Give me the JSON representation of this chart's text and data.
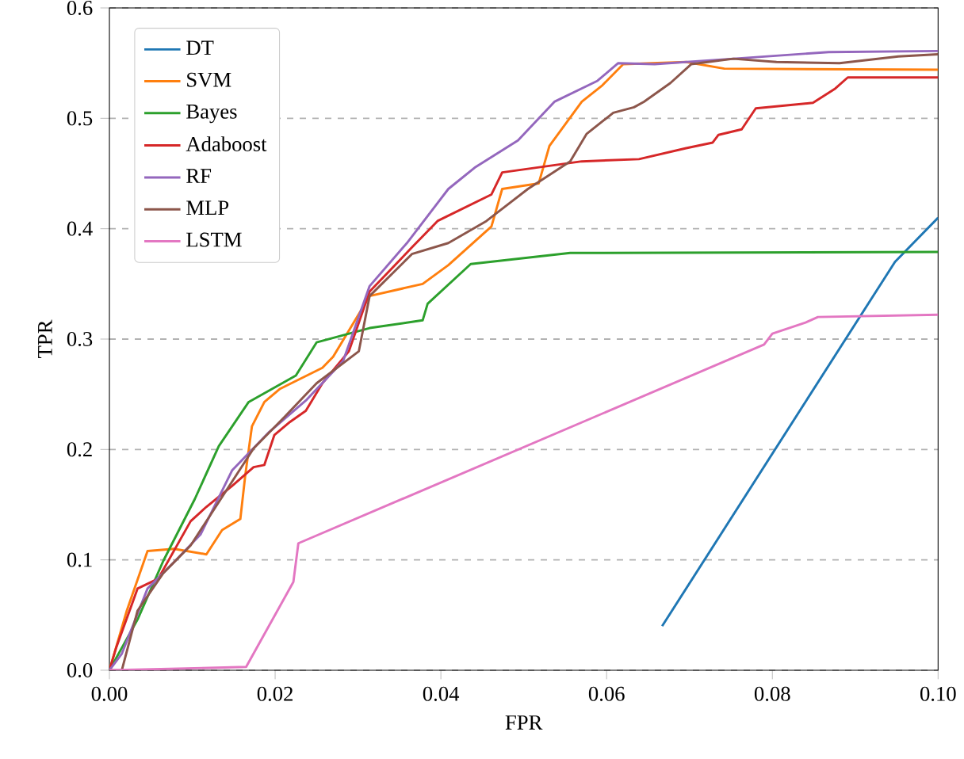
{
  "chart_data": {
    "type": "line",
    "xlabel": "FPR",
    "ylabel": "TPR",
    "xlim": [
      0,
      0.1
    ],
    "ylim": [
      0,
      0.6
    ],
    "xticks": [
      {
        "value": 0,
        "label": "0.00"
      },
      {
        "value": 0.02,
        "label": "0.02"
      },
      {
        "value": 0.04,
        "label": "0.04"
      },
      {
        "value": 0.06,
        "label": "0.06"
      },
      {
        "value": 0.08,
        "label": "0.08"
      },
      {
        "value": 0.1,
        "label": "0.10"
      }
    ],
    "yticks": [
      {
        "value": 0,
        "label": "0.0"
      },
      {
        "value": 0.1,
        "label": "0.1"
      },
      {
        "value": 0.2,
        "label": "0.2"
      },
      {
        "value": 0.3,
        "label": "0.3"
      },
      {
        "value": 0.4,
        "label": "0.4"
      },
      {
        "value": 0.5,
        "label": "0.5"
      },
      {
        "value": 0.6,
        "label": "0.6"
      }
    ],
    "grid": "y",
    "legend": "top left",
    "marker": "none",
    "line_style": "solid",
    "series": [
      {
        "name": "DT",
        "color": "#1f77b4",
        "x": [
          0.0667,
          0.0948,
          0.1
        ],
        "values": [
          0.04,
          0.37,
          0.41
        ]
      },
      {
        "name": "SVM",
        "color": "#ff7f0e",
        "x": [
          0,
          0.0021,
          0.0046,
          0.0078,
          0.0117,
          0.0136,
          0.0158,
          0.0164,
          0.0172,
          0.0187,
          0.0206,
          0.0257,
          0.027,
          0.0314,
          0.0378,
          0.0409,
          0.0461,
          0.0474,
          0.0518,
          0.0531,
          0.057,
          0.0595,
          0.062,
          0.0696,
          0.0742,
          0.1
        ],
        "values": [
          0,
          0.054,
          0.108,
          0.11,
          0.105,
          0.127,
          0.137,
          0.177,
          0.221,
          0.243,
          0.255,
          0.274,
          0.284,
          0.339,
          0.35,
          0.367,
          0.402,
          0.436,
          0.441,
          0.475,
          0.515,
          0.53,
          0.549,
          0.551,
          0.545,
          0.544
        ]
      },
      {
        "name": "Bayes",
        "color": "#2ca02c",
        "x": [
          0,
          0.0034,
          0.0065,
          0.0103,
          0.0132,
          0.0168,
          0.0225,
          0.025,
          0.0314,
          0.0378,
          0.0384,
          0.0436,
          0.0556,
          0.1
        ],
        "values": [
          0,
          0.046,
          0.099,
          0.155,
          0.203,
          0.243,
          0.267,
          0.297,
          0.31,
          0.317,
          0.332,
          0.368,
          0.378,
          0.379
        ]
      },
      {
        "name": "Adaboost",
        "color": "#d62728",
        "x": [
          0,
          0.0008,
          0.0034,
          0.0059,
          0.0098,
          0.0117,
          0.0148,
          0.0174,
          0.0187,
          0.0199,
          0.0218,
          0.0237,
          0.0257,
          0.0289,
          0.0314,
          0.0365,
          0.0396,
          0.0461,
          0.0474,
          0.057,
          0.0639,
          0.0696,
          0.0728,
          0.0735,
          0.0763,
          0.078,
          0.0849,
          0.0876,
          0.0891,
          0.1
        ],
        "values": [
          0,
          0.02,
          0.074,
          0.083,
          0.135,
          0.148,
          0.167,
          0.184,
          0.186,
          0.213,
          0.225,
          0.235,
          0.26,
          0.289,
          0.343,
          0.383,
          0.407,
          0.431,
          0.451,
          0.461,
          0.463,
          0.473,
          0.478,
          0.485,
          0.49,
          0.509,
          0.514,
          0.527,
          0.537,
          0.537
        ]
      },
      {
        "name": "RF",
        "color": "#9467bd",
        "x": [
          0,
          0.0015,
          0.0046,
          0.0078,
          0.011,
          0.0148,
          0.0193,
          0.0238,
          0.0282,
          0.0314,
          0.0359,
          0.0409,
          0.0442,
          0.0493,
          0.0537,
          0.0589,
          0.0614,
          0.0658,
          0.0753,
          0.0868,
          0.1
        ],
        "values": [
          0,
          0.015,
          0.074,
          0.098,
          0.123,
          0.181,
          0.216,
          0.245,
          0.28,
          0.348,
          0.387,
          0.436,
          0.456,
          0.48,
          0.515,
          0.534,
          0.55,
          0.549,
          0.554,
          0.56,
          0.561
        ]
      },
      {
        "name": "MLP",
        "color": "#8c564b",
        "x": [
          0,
          0.0015,
          0.0034,
          0.0065,
          0.0098,
          0.0136,
          0.0174,
          0.0212,
          0.025,
          0.0301,
          0.0314,
          0.0365,
          0.0409,
          0.0455,
          0.0505,
          0.0556,
          0.0576,
          0.0608,
          0.0633,
          0.0645,
          0.0677,
          0.0702,
          0.0753,
          0.0805,
          0.0881,
          0.0952,
          0.1
        ],
        "values": [
          0,
          0,
          0.054,
          0.088,
          0.113,
          0.157,
          0.201,
          0.23,
          0.26,
          0.289,
          0.339,
          0.377,
          0.387,
          0.407,
          0.436,
          0.461,
          0.486,
          0.505,
          0.51,
          0.515,
          0.532,
          0.549,
          0.554,
          0.551,
          0.55,
          0.556,
          0.558
        ]
      },
      {
        "name": "LSTM",
        "color": "#e377c2",
        "x": [
          0,
          0.0165,
          0.0222,
          0.0228,
          0.079,
          0.08,
          0.082,
          0.084,
          0.0855,
          0.1
        ],
        "values": [
          0,
          0.003,
          0.08,
          0.115,
          0.295,
          0.305,
          0.31,
          0.315,
          0.32,
          0.322
        ]
      }
    ]
  }
}
